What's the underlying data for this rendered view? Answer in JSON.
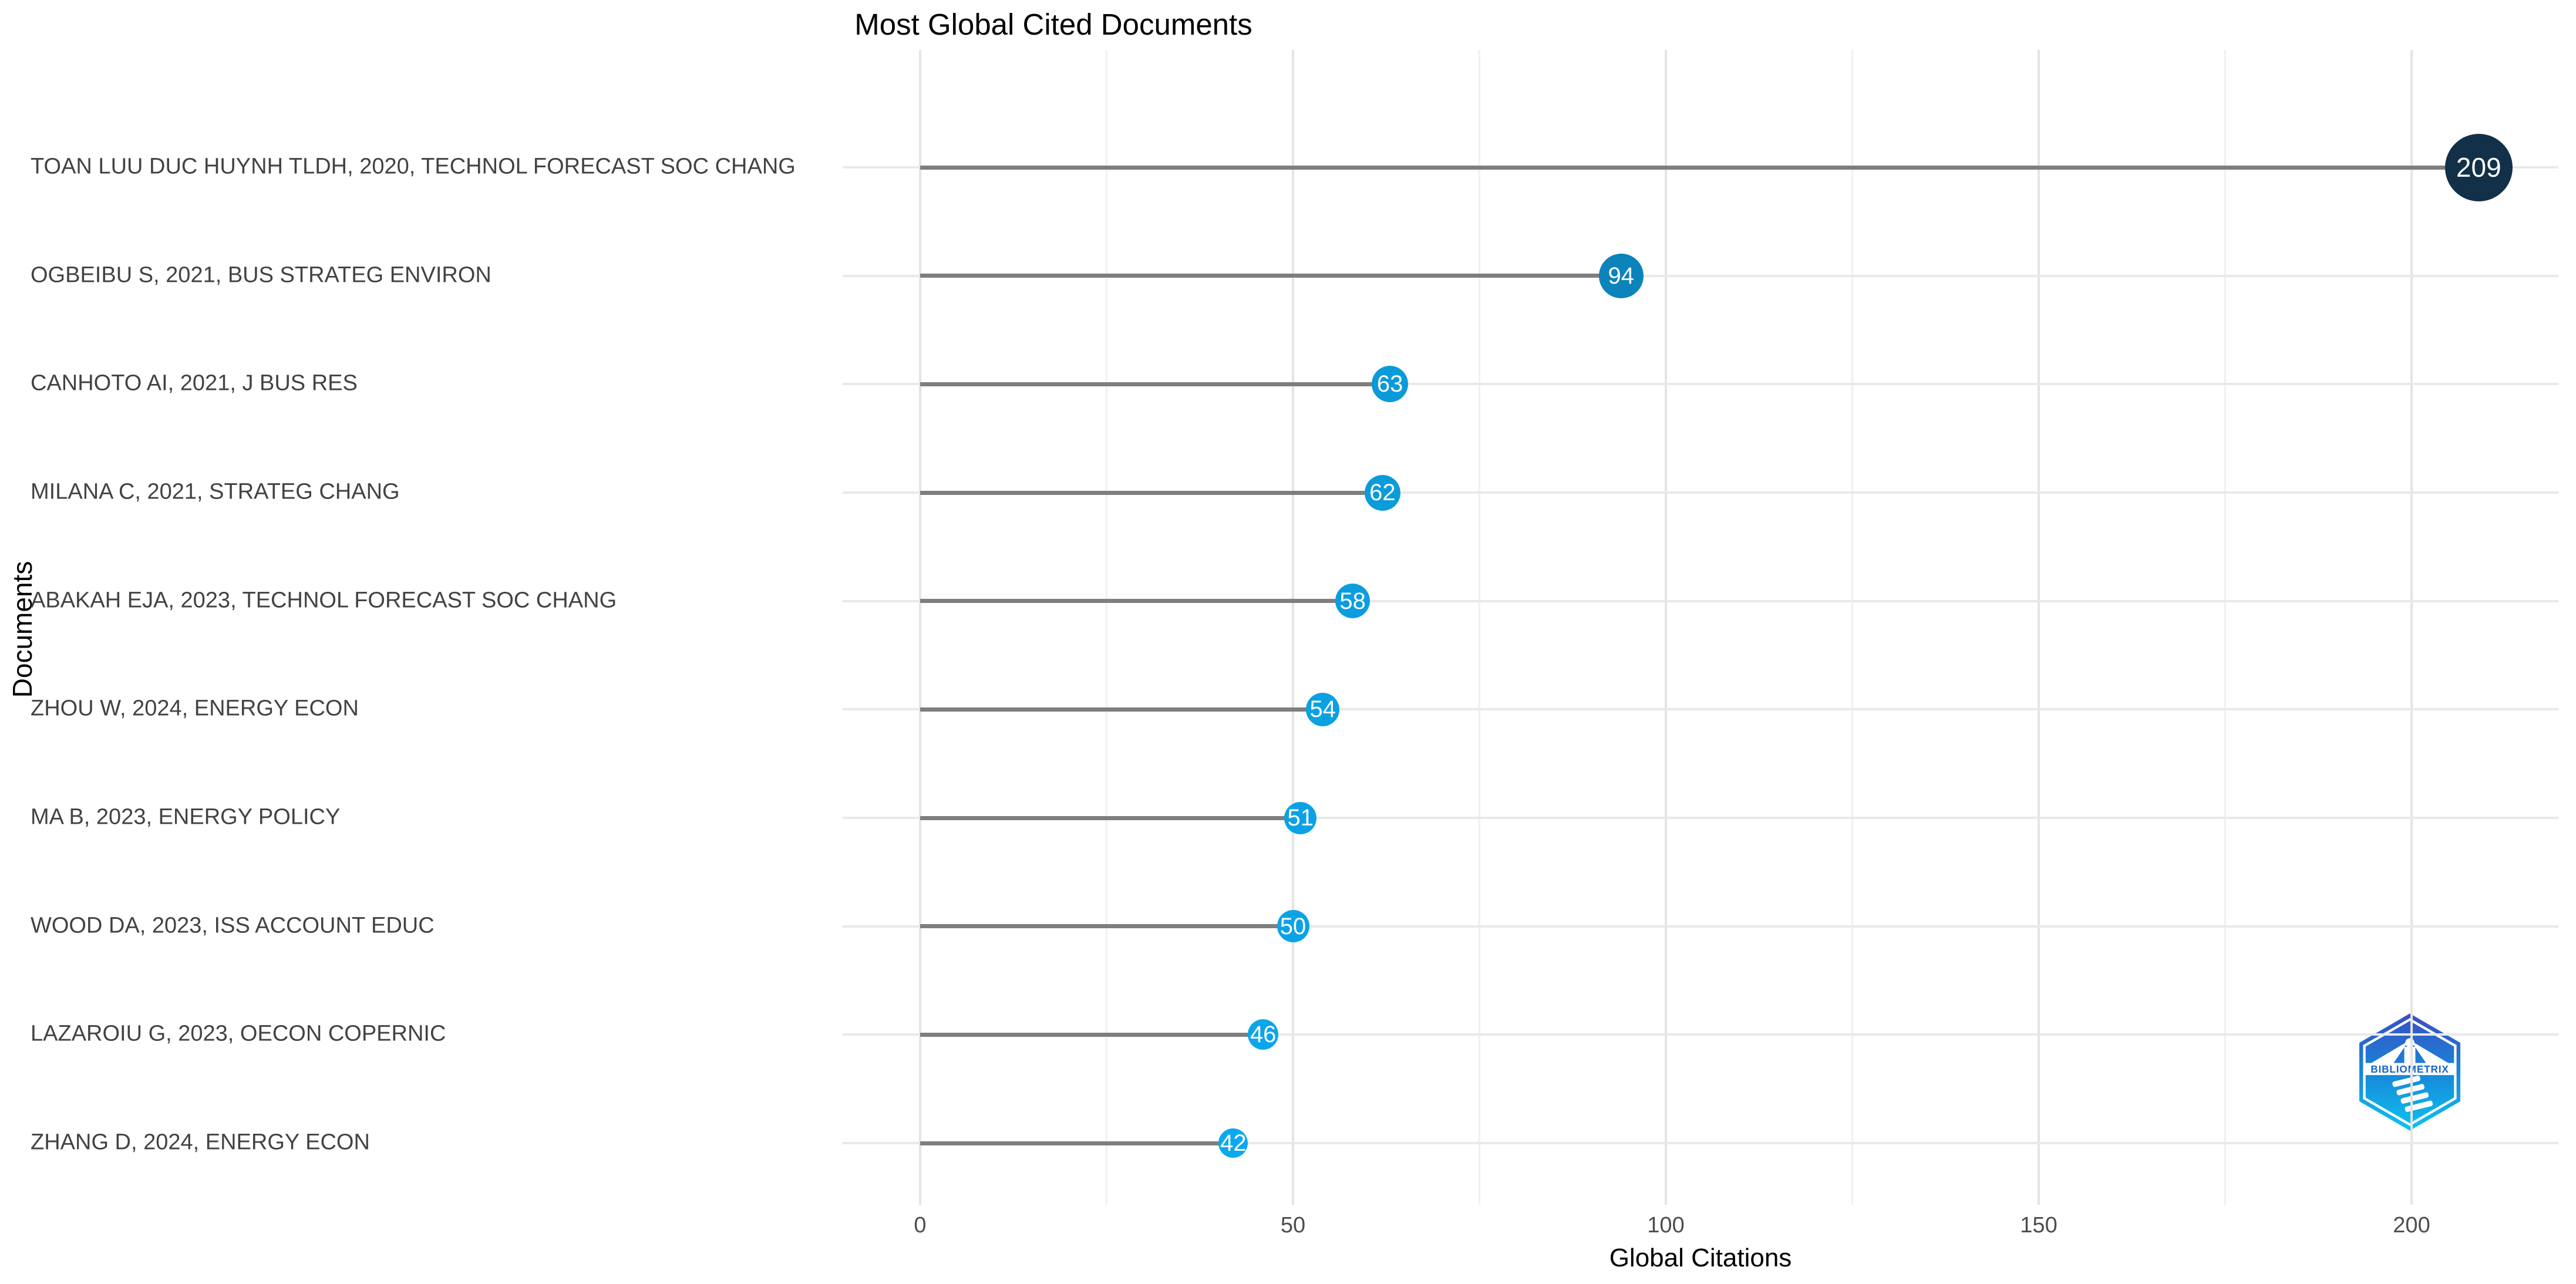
{
  "title": "Most Global Cited Documents",
  "chart_data": {
    "type": "bar",
    "variant": "horizontal-lollipop",
    "title": "Most Global Cited Documents",
    "categories": [
      "TOAN LUU DUC HUYNH TLDH, 2020, TECHNOL FORECAST SOC CHANG",
      "OGBEIBU S, 2021, BUS STRATEG ENVIRON",
      "CANHOTO AI, 2021, J BUS RES",
      "MILANA C, 2021, STRATEG CHANG",
      "ABAKAH EJA, 2023, TECHNOL FORECAST SOC CHANG",
      "ZHOU W, 2024, ENERGY ECON",
      "MA B, 2023, ENERGY POLICY",
      "WOOD DA, 2023, ISS ACCOUNT EDUC",
      "LAZAROIU G, 2023, OECON COPERNIC",
      "ZHANG D, 2024, ENERGY ECON"
    ],
    "values": [
      209,
      94,
      63,
      62,
      58,
      54,
      51,
      50,
      46,
      42
    ],
    "xlabel": "Global Citations",
    "ylabel": "Documents",
    "xticks": [
      0,
      50,
      100,
      150,
      200
    ],
    "minor_xticks": [
      25,
      75,
      125,
      175
    ],
    "xlim": [
      -10.45,
      219.45
    ],
    "grid": true,
    "legend": false,
    "colors": {
      "dot_low": "#0AA9EE",
      "dot_high": "#133049",
      "dot_text": "#FFFFFF",
      "stem": "#7E7E7E",
      "grid_major": "#E4E4E4",
      "grid_minor": "#F0F0F0",
      "row_grid": "#E9E9E9",
      "category_label": "#424242",
      "tick_label": "#4D4D4D",
      "title_text": "#000000"
    }
  },
  "logo": {
    "label": "BIBLIOMETRIX",
    "gradient_top": "#3A4EC4",
    "gradient_bottom": "#0BC4F0"
  }
}
